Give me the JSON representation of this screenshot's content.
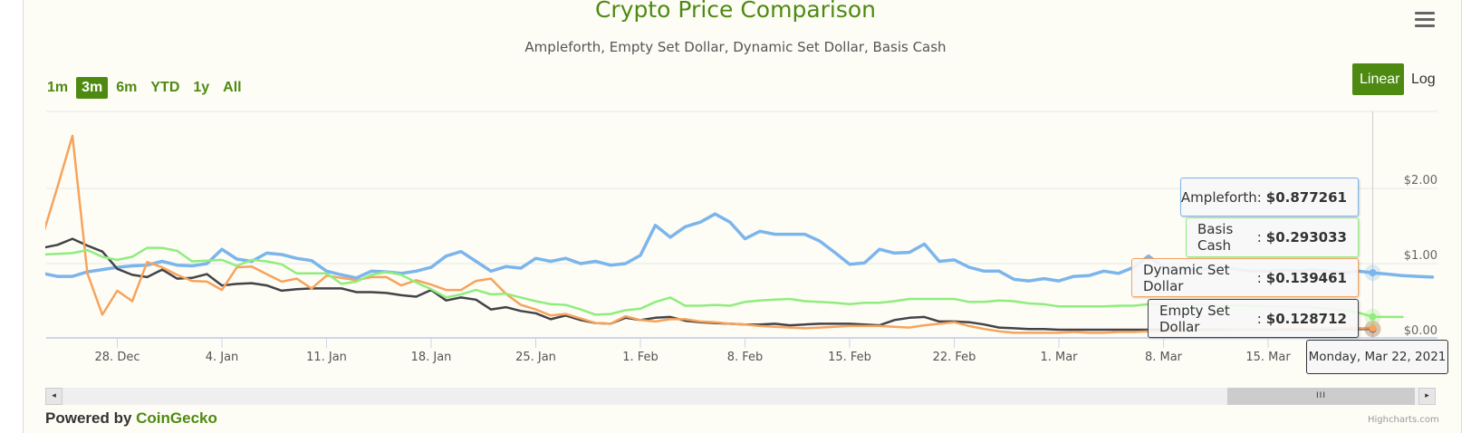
{
  "title": "Crypto Price Comparison",
  "subtitle": "Ampleforth, Empty Set Dollar, Dynamic Set Dollar, Basis Cash",
  "range_buttons": [
    {
      "label": "1m",
      "active": false
    },
    {
      "label": "3m",
      "active": true
    },
    {
      "label": "6m",
      "active": false
    },
    {
      "label": "YTD",
      "active": false
    },
    {
      "label": "1y",
      "active": false
    },
    {
      "label": "All",
      "active": false
    }
  ],
  "scale_buttons": {
    "linear": "Linear",
    "log": "Log",
    "active": "Linear"
  },
  "menu_icon": "hamburger-menu-icon",
  "tooltip": {
    "date": "Monday, Mar 22, 2021",
    "rows": [
      {
        "name": "Ampleforth",
        "value": "$0.877261",
        "color": "#7cb5ec"
      },
      {
        "name": "Basis Cash",
        "value": "$0.293033",
        "color": "#90ed7d"
      },
      {
        "name": "Dynamic Set Dollar",
        "value": "$0.139461",
        "color": "#f7a35c"
      },
      {
        "name": "Empty Set Dollar",
        "value": "$0.128712",
        "color": "#434348"
      }
    ]
  },
  "navigator": {
    "thumb_grip": "III",
    "left_arrow": "◂",
    "right_arrow": "▸"
  },
  "footer": {
    "powered_by": "Powered by ",
    "powered_link": "CoinGecko",
    "credits": "Highcharts.com"
  },
  "chart_data": {
    "type": "line",
    "title": "Crypto Price Comparison",
    "subtitle": "Ampleforth, Empty Set Dollar, Dynamic Set Dollar, Basis Cash",
    "xlabel": "",
    "ylabel": "",
    "xlim": [
      "2020-12-23",
      "2021-03-26"
    ],
    "ylim": [
      0,
      3
    ],
    "grid": true,
    "crosshair_date": "2021-03-22",
    "x_ticks": [
      {
        "date": "2020-12-28",
        "label": "28. Dec"
      },
      {
        "date": "2021-01-04",
        "label": "4. Jan"
      },
      {
        "date": "2021-01-11",
        "label": "11. Jan"
      },
      {
        "date": "2021-01-18",
        "label": "18. Jan"
      },
      {
        "date": "2021-01-25",
        "label": "25. Jan"
      },
      {
        "date": "2021-02-01",
        "label": "1. Feb"
      },
      {
        "date": "2021-02-08",
        "label": "8. Feb"
      },
      {
        "date": "2021-02-15",
        "label": "15. Feb"
      },
      {
        "date": "2021-02-22",
        "label": "22. Feb"
      },
      {
        "date": "2021-03-01",
        "label": "1. Mar"
      },
      {
        "date": "2021-03-08",
        "label": "8. Mar"
      },
      {
        "date": "2021-03-15",
        "label": "15. Mar"
      }
    ],
    "y_ticks": [
      {
        "value": 0,
        "label": "$0.00"
      },
      {
        "value": 1,
        "label": "$1.00"
      },
      {
        "value": 2,
        "label": "$2.00"
      }
    ],
    "series": [
      {
        "name": "Ampleforth",
        "color": "#7cb5ec",
        "width": 3.5,
        "start": "2020-12-23",
        "values": [
          0.87,
          0.83,
          0.83,
          0.89,
          0.92,
          0.95,
          0.97,
          0.98,
          1.03,
          0.98,
          0.97,
          1.0,
          1.19,
          1.06,
          1.03,
          1.14,
          1.12,
          1.07,
          1.04,
          0.9,
          0.85,
          0.81,
          0.9,
          0.89,
          0.87,
          0.9,
          0.95,
          1.1,
          1.16,
          1.03,
          0.9,
          0.96,
          0.94,
          1.07,
          1.03,
          1.07,
          1.0,
          1.03,
          0.98,
          1.0,
          1.11,
          1.51,
          1.35,
          1.49,
          1.55,
          1.66,
          1.55,
          1.33,
          1.43,
          1.39,
          1.39,
          1.39,
          1.3,
          1.15,
          0.99,
          1.01,
          1.19,
          1.14,
          1.15,
          1.26,
          1.03,
          1.05,
          0.95,
          0.9,
          0.9,
          0.79,
          0.77,
          0.8,
          0.77,
          0.83,
          0.84,
          0.9,
          0.87,
          0.95,
          1.1,
          0.95,
          0.93,
          0.92,
          0.93,
          0.95,
          0.92,
          0.9,
          0.9,
          0.92,
          0.9,
          0.92,
          0.9,
          0.88,
          0.9,
          0.877261,
          0.86,
          0.84,
          0.83,
          0.82
        ]
      },
      {
        "name": "Empty Set Dollar",
        "color": "#434348",
        "width": 2.5,
        "start": "2020-12-23",
        "values": [
          1.21,
          1.25,
          1.33,
          1.24,
          1.16,
          0.93,
          0.85,
          0.82,
          0.92,
          0.8,
          0.81,
          0.86,
          0.71,
          0.73,
          0.74,
          0.71,
          0.64,
          0.66,
          0.67,
          0.67,
          0.67,
          0.62,
          0.62,
          0.61,
          0.58,
          0.56,
          0.65,
          0.51,
          0.55,
          0.52,
          0.39,
          0.42,
          0.37,
          0.34,
          0.26,
          0.31,
          0.25,
          0.21,
          0.2,
          0.28,
          0.25,
          0.28,
          0.29,
          0.24,
          0.22,
          0.21,
          0.2,
          0.19,
          0.19,
          0.2,
          0.18,
          0.19,
          0.2,
          0.2,
          0.2,
          0.19,
          0.18,
          0.25,
          0.28,
          0.29,
          0.23,
          0.23,
          0.22,
          0.19,
          0.15,
          0.14,
          0.13,
          0.13,
          0.12,
          0.12,
          0.12,
          0.12,
          0.12,
          0.12,
          0.12,
          0.12,
          0.12,
          0.12,
          0.12,
          0.12,
          0.12,
          0.12,
          0.12,
          0.12,
          0.12,
          0.12,
          0.12,
          0.13,
          0.13,
          0.128712
        ]
      },
      {
        "name": "Dynamic Set Dollar",
        "color": "#f7a35c",
        "width": 2.5,
        "start": "2020-12-23",
        "values": [
          1.37,
          2.02,
          2.7,
          0.87,
          0.32,
          0.64,
          0.5,
          1.02,
          0.95,
          0.85,
          0.77,
          0.76,
          0.65,
          0.95,
          0.96,
          0.86,
          0.76,
          0.8,
          0.67,
          0.84,
          0.81,
          0.78,
          0.82,
          0.82,
          0.71,
          0.78,
          0.72,
          0.65,
          0.65,
          0.77,
          0.8,
          0.6,
          0.45,
          0.39,
          0.31,
          0.33,
          0.27,
          0.21,
          0.2,
          0.3,
          0.25,
          0.23,
          0.26,
          0.26,
          0.23,
          0.22,
          0.2,
          0.19,
          0.17,
          0.16,
          0.15,
          0.14,
          0.15,
          0.16,
          0.17,
          0.17,
          0.17,
          0.16,
          0.15,
          0.18,
          0.2,
          0.22,
          0.17,
          0.13,
          0.1,
          0.08,
          0.08,
          0.08,
          0.08,
          0.09,
          0.08,
          0.08,
          0.09,
          0.09,
          0.1,
          0.1,
          0.1,
          0.11,
          0.11,
          0.11,
          0.12,
          0.12,
          0.12,
          0.13,
          0.13,
          0.13,
          0.14,
          0.14,
          0.14,
          0.139461
        ]
      },
      {
        "name": "Basis Cash",
        "color": "#90ed7d",
        "width": 2.5,
        "start": "2020-12-23",
        "values": [
          1.12,
          1.13,
          1.14,
          1.18,
          1.09,
          1.05,
          1.09,
          1.21,
          1.21,
          1.17,
          1.03,
          1.04,
          1.05,
          0.97,
          1.05,
          1.03,
          0.99,
          0.87,
          0.87,
          0.87,
          0.73,
          0.76,
          0.85,
          0.89,
          0.85,
          0.75,
          0.66,
          0.55,
          0.59,
          0.65,
          0.59,
          0.6,
          0.55,
          0.5,
          0.46,
          0.45,
          0.39,
          0.32,
          0.33,
          0.38,
          0.4,
          0.49,
          0.55,
          0.44,
          0.44,
          0.45,
          0.44,
          0.49,
          0.51,
          0.52,
          0.53,
          0.5,
          0.49,
          0.48,
          0.46,
          0.48,
          0.48,
          0.5,
          0.53,
          0.53,
          0.53,
          0.53,
          0.49,
          0.49,
          0.51,
          0.5,
          0.47,
          0.46,
          0.43,
          0.43,
          0.43,
          0.43,
          0.44,
          0.44,
          0.46,
          0.46,
          0.45,
          0.45,
          0.45,
          0.44,
          0.44,
          0.44,
          0.43,
          0.43,
          0.42,
          0.42,
          0.4,
          0.38,
          0.35,
          0.293033,
          0.29,
          0.29
        ]
      }
    ]
  }
}
